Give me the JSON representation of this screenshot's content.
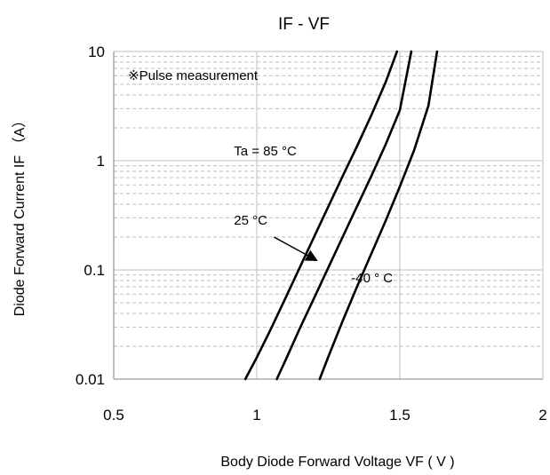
{
  "chart_data": {
    "type": "line",
    "title": "IF - VF",
    "xlabel": "Body Diode Forward Voltage VF ( V )",
    "ylabel": "Diode Forward Current IF （A）",
    "xlim": [
      0.5,
      2
    ],
    "ylim": [
      0.01,
      10
    ],
    "y_scale": "log",
    "x_ticks": [
      0.5,
      1,
      1.5,
      2
    ],
    "x_tick_labels": [
      "0.5",
      "1",
      "1.5",
      "2"
    ],
    "y_ticks": [
      0.01,
      0.1,
      1,
      10
    ],
    "y_tick_labels": [
      "0.01",
      "0.1",
      "1",
      "10"
    ],
    "grid": true,
    "line_color": "#000000",
    "grid_color": "#bfbfbf",
    "series": [
      {
        "name": "Ta = 85 °C",
        "x": [
          0.96,
          1.0,
          1.05,
          1.1,
          1.15,
          1.2,
          1.25,
          1.3,
          1.35,
          1.4,
          1.45,
          1.49
        ],
        "y": [
          0.01,
          0.0158,
          0.029,
          0.055,
          0.105,
          0.2,
          0.38,
          0.72,
          1.35,
          2.6,
          5.2,
          10
        ]
      },
      {
        "name": "25 °C",
        "x": [
          1.07,
          1.1,
          1.15,
          1.2,
          1.25,
          1.3,
          1.35,
          1.4,
          1.45,
          1.5,
          1.54
        ],
        "y": [
          0.01,
          0.0148,
          0.029,
          0.055,
          0.105,
          0.2,
          0.38,
          0.72,
          1.4,
          2.9,
          10
        ]
      },
      {
        "name": "-40 °  C",
        "x": [
          1.22,
          1.25,
          1.3,
          1.35,
          1.4,
          1.45,
          1.5,
          1.55,
          1.6,
          1.63
        ],
        "y": [
          0.01,
          0.016,
          0.034,
          0.07,
          0.14,
          0.28,
          0.58,
          1.25,
          3.2,
          10
        ]
      }
    ],
    "annotations": [
      {
        "text": "※Pulse measurement",
        "x": 0.55,
        "y": 5.5
      },
      {
        "text": "Ta = 85 °C",
        "x": 0.92,
        "y": 1.12
      },
      {
        "text": "25 °C",
        "x": 0.92,
        "y": 0.26
      },
      {
        "text": "-40 °  C",
        "x": 1.33,
        "y": 0.077
      }
    ],
    "arrow": {
      "from": [
        1.06,
        0.2
      ],
      "to": [
        1.21,
        0.122
      ]
    }
  }
}
